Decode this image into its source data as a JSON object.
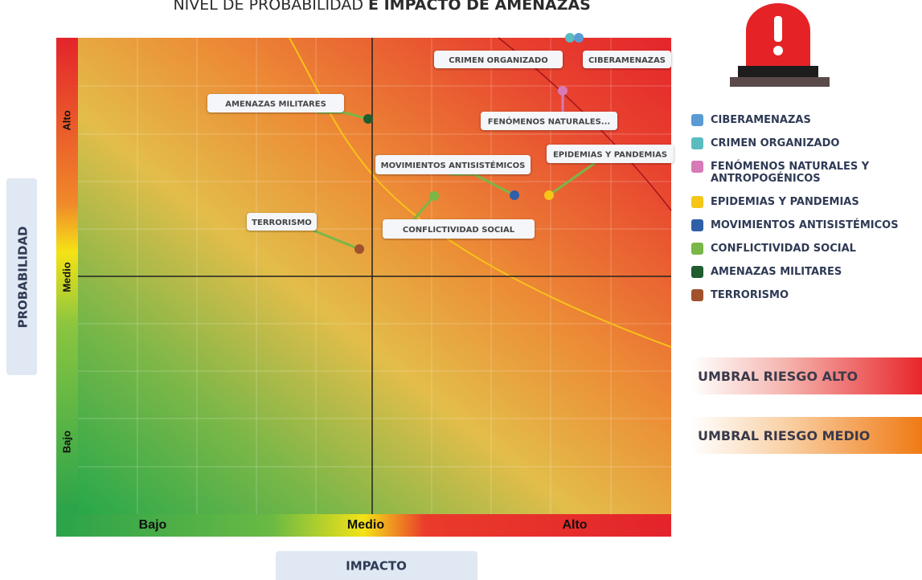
{
  "title": {
    "normal": "NIVEL DE PROBABILIDAD",
    "bold": "E IMPACTO DE AMENAZAS"
  },
  "y_axis_label": "PROBABILIDAD",
  "x_axis_label": "IMPACTO",
  "y_levels": [
    "Alto",
    "Medio",
    "Bajo"
  ],
  "x_levels": [
    "Bajo",
    "Medio",
    "Alto"
  ],
  "point_labels": [
    "CRIMEN ORGANIZADO",
    "CIBERAMENAZAS",
    "AMENAZAS MILITARES",
    "FENÓMENOS NATURALES...",
    "EPIDEMIAS Y PANDEMIAS",
    "MOVIMIENTOS ANTISISTÉMICOS",
    "TERRORISMO",
    "CONFLICTIVIDAD SOCIAL"
  ],
  "legend": [
    "CIBERAMENAZAS",
    "CRIMEN ORGANIZADO",
    "FENÓMENOS NATURALES Y ANTROPOGÉNICOS",
    "EPIDEMIAS Y PANDEMIAS",
    "MOVIMIENTOS ANTISISTÉMICOS",
    "CONFLICTIVIDAD SOCIAL",
    "AMENAZAS MILITARES",
    "TERRORISMO"
  ],
  "thresholds": [
    "UMBRAL RIESGO ALTO",
    "UMBRAL RIESGO MEDIO"
  ]
}
